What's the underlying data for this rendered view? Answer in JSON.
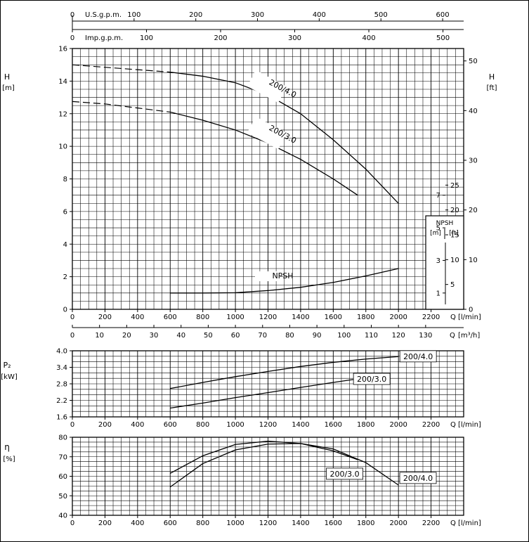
{
  "chart_data": [
    {
      "type": "line",
      "panel": "head",
      "ylabel": "H",
      "yunit": "[m]",
      "ylabel_right": "H",
      "yunit_right": "[ft]",
      "ylim": [
        0,
        16
      ],
      "yticks": [
        0,
        2,
        4,
        6,
        8,
        10,
        12,
        14,
        16
      ],
      "ylim_right": [
        0,
        52.5
      ],
      "yticks_right": [
        0,
        10,
        20,
        30,
        40,
        50
      ],
      "xlim": [
        0,
        2400
      ],
      "xticks": [
        0,
        200,
        400,
        600,
        800,
        1000,
        1200,
        1400,
        1600,
        1800,
        2000,
        2200
      ],
      "xlabel": "Q [l/min]",
      "grid": true,
      "top_axes": [
        {
          "label": "U.S.g.p.m.",
          "ticks": [
            0,
            100,
            200,
            300,
            400,
            500,
            600
          ]
        },
        {
          "label": "Imp.g.p.m.",
          "ticks": [
            0,
            100,
            200,
            300,
            400,
            500
          ]
        }
      ],
      "series": [
        {
          "name": "200/4.0",
          "label_at": [
            1300,
            13.4
          ],
          "dashed_x": [
            0,
            200,
            400,
            600
          ],
          "dashed_y": [
            15.0,
            14.85,
            14.7,
            14.55
          ],
          "x": [
            600,
            800,
            1000,
            1200,
            1400,
            1600,
            1800,
            2000
          ],
          "y": [
            14.55,
            14.3,
            13.9,
            13.15,
            12.0,
            10.4,
            8.6,
            6.5
          ]
        },
        {
          "name": "200/3.0",
          "label_at": [
            1300,
            10.6
          ],
          "dashed_x": [
            0,
            200,
            400,
            600
          ],
          "dashed_y": [
            12.75,
            12.6,
            12.35,
            12.1
          ],
          "x": [
            600,
            800,
            1000,
            1200,
            1400,
            1600,
            1750
          ],
          "y": [
            12.1,
            11.6,
            11.0,
            10.2,
            9.2,
            8.0,
            7.0
          ]
        },
        {
          "name": "NPSH",
          "label_at": [
            1200,
            1.85
          ],
          "x": [
            600,
            800,
            1000,
            1200,
            1400,
            1600,
            1800,
            2000
          ],
          "y": [
            1.0,
            1.0,
            1.02,
            1.15,
            1.35,
            1.65,
            2.05,
            2.5
          ]
        }
      ],
      "npsh_box": {
        "title": "NPSH",
        "unit_m": "[m]",
        "unit_ft": "[ft]",
        "m_ticks": [
          "1",
          "3",
          "5",
          "7"
        ],
        "ft_ticks": [
          "5",
          "10",
          "15",
          "20",
          "25"
        ]
      }
    },
    {
      "type": "axis",
      "panel": "m3h-scale",
      "xlim": [
        0,
        144
      ],
      "xticks": [
        0,
        10,
        20,
        30,
        40,
        50,
        60,
        70,
        80,
        90,
        100,
        110,
        120,
        130
      ],
      "xlabel": "Q [m³/h]"
    },
    {
      "type": "line",
      "panel": "power",
      "ylabel": "P₂",
      "yunit": "[kW]",
      "ylim": [
        1.6,
        4.0
      ],
      "yticks": [
        1.6,
        2.2,
        2.8,
        3.4,
        4.0
      ],
      "xlim": [
        0,
        2400
      ],
      "xticks": [
        0,
        200,
        400,
        600,
        800,
        1000,
        1200,
        1400,
        1600,
        1800,
        2000,
        2200
      ],
      "xlabel": "Q [l/min]",
      "grid": true,
      "series": [
        {
          "name": "200/4.0",
          "label_at": [
            2000,
            3.8
          ],
          "x": [
            600,
            800,
            1000,
            1200,
            1400,
            1600,
            1800,
            2000
          ],
          "y": [
            2.63,
            2.85,
            3.06,
            3.25,
            3.43,
            3.58,
            3.7,
            3.79
          ]
        },
        {
          "name": "200/3.0",
          "label_at": [
            1750,
            2.98
          ],
          "x": [
            600,
            800,
            1000,
            1200,
            1400,
            1600,
            1750
          ],
          "y": [
            1.92,
            2.1,
            2.3,
            2.48,
            2.67,
            2.85,
            2.98
          ]
        }
      ]
    },
    {
      "type": "line",
      "panel": "efficiency",
      "ylabel": "η",
      "yunit": "[%]",
      "ylim": [
        40,
        80
      ],
      "yticks": [
        40,
        50,
        60,
        70,
        80
      ],
      "xlim": [
        0,
        2400
      ],
      "xticks": [
        0,
        200,
        400,
        600,
        800,
        1000,
        1200,
        1400,
        1600,
        1800,
        2000,
        2200
      ],
      "xlabel": "Q [l/min]",
      "grid": true,
      "series": [
        {
          "name": "200/4.0",
          "label_at": [
            2120,
            59.5
          ],
          "x": [
            600,
            800,
            1000,
            1200,
            1400,
            1600,
            1800,
            2000
          ],
          "y": [
            54.5,
            66.5,
            73.5,
            76.5,
            76.8,
            74.0,
            67.0,
            55.5
          ]
        },
        {
          "name": "200/3.0",
          "label_at": [
            1670,
            61.3
          ],
          "x": [
            600,
            800,
            1000,
            1200,
            1400,
            1600,
            1750
          ],
          "y": [
            61.5,
            70.5,
            76.3,
            78.0,
            76.8,
            73.0,
            68.5
          ]
        }
      ]
    }
  ]
}
